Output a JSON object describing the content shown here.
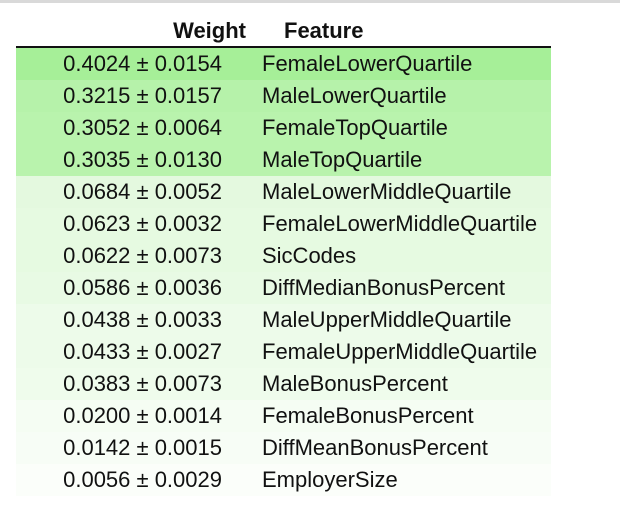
{
  "table": {
    "headers": {
      "weight": "Weight",
      "feature": "Feature"
    },
    "rows": [
      {
        "weight": "0.4024 ± 0.0154",
        "feature": "FemaleLowerQuartile",
        "color": "#a6ef98"
      },
      {
        "weight": "0.3215 ± 0.0157",
        "feature": "MaleLowerQuartile",
        "color": "#b6f2aa"
      },
      {
        "weight": "0.3052 ± 0.0064",
        "feature": "FemaleTopQuartile",
        "color": "#b9f3ad"
      },
      {
        "weight": "0.3035 ± 0.0130",
        "feature": "MaleTopQuartile",
        "color": "#b9f3ad"
      },
      {
        "weight": "0.0684 ± 0.0052",
        "feature": "MaleLowerMiddleQuartile",
        "color": "#e4f9df"
      },
      {
        "weight": "0.0623 ± 0.0032",
        "feature": "FemaleLowerMiddleQuartile",
        "color": "#e6fae1"
      },
      {
        "weight": "0.0622 ± 0.0073",
        "feature": "SicCodes",
        "color": "#e6fae1"
      },
      {
        "weight": "0.0586 ± 0.0036",
        "feature": "DiffMedianBonusPercent",
        "color": "#e8fae4"
      },
      {
        "weight": "0.0438 ± 0.0033",
        "feature": "MaleUpperMiddleQuartile",
        "color": "#edfbea"
      },
      {
        "weight": "0.0433 ± 0.0027",
        "feature": "FemaleUpperMiddleQuartile",
        "color": "#edfbea"
      },
      {
        "weight": "0.0383 ± 0.0073",
        "feature": "MaleBonusPercent",
        "color": "#effcec"
      },
      {
        "weight": "0.0200 ± 0.0014",
        "feature": "FemaleBonusPercent",
        "color": "#f5fdf3"
      },
      {
        "weight": "0.0142 ± 0.0015",
        "feature": "DiffMeanBonusPercent",
        "color": "#f7fdf6"
      },
      {
        "weight": "0.0056 ± 0.0029",
        "feature": "EmployerSize",
        "color": "#fbfefa"
      }
    ]
  }
}
